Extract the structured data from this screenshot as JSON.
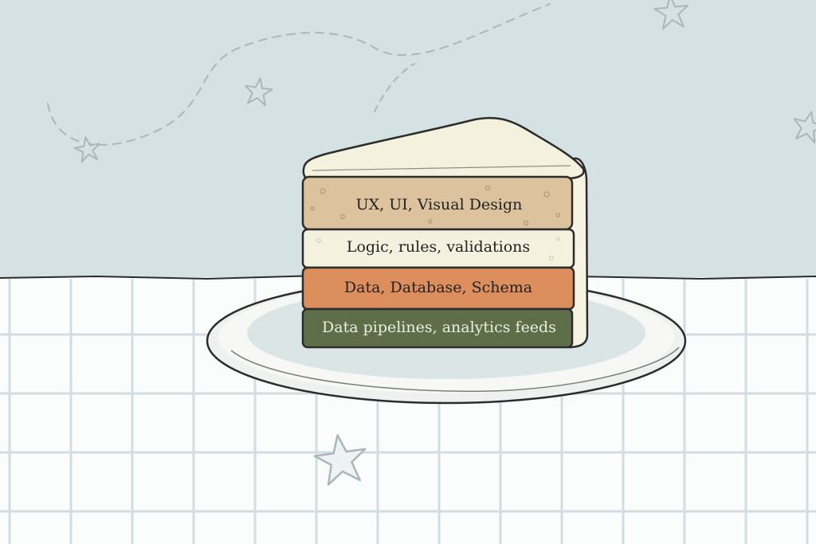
{
  "colors": {
    "wall": "#d5e2e3",
    "table": "#fbfcfc",
    "grid": "#d3dde1",
    "plate": "#f7f8f6",
    "plate_shadow": "#dbe5e6",
    "frosting": "#f5f1df",
    "layer_top": "#dcc39d",
    "layer_logic": "#f4f1df",
    "layer_data": "#dd8e5d",
    "layer_pipeline": "#5e6e48",
    "outline": "#2c2c2c",
    "star": "#a9b7ba"
  },
  "cake": {
    "layers": [
      {
        "label": "UX, UI, Visual Design",
        "color": "#dcc39d",
        "text_color": "#222222"
      },
      {
        "label": "Logic, rules, validations",
        "color": "#f4f1df",
        "text_color": "#222222"
      },
      {
        "label": "Data, Database, Schema",
        "color": "#dd8e5d",
        "text_color": "#222222"
      },
      {
        "label": "Data pipelines, analytics feeds",
        "color": "#5e6e48",
        "text_color": "#eaeee2"
      }
    ]
  },
  "decorations": [
    "star-icon",
    "star-icon",
    "star-icon",
    "star-icon",
    "star-icon"
  ]
}
